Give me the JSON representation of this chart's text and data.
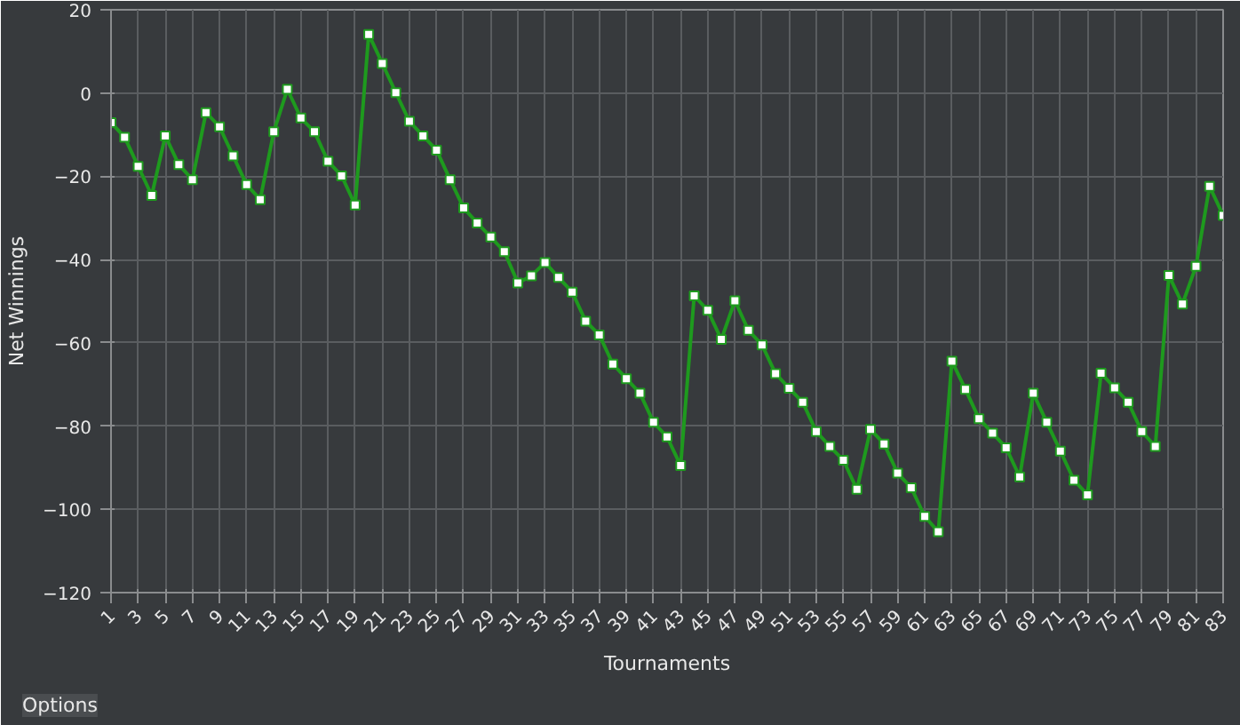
{
  "chart_data": {
    "type": "line",
    "xlabel": "Tournaments",
    "ylabel": "Net Winnings",
    "x": [
      1,
      2,
      3,
      4,
      5,
      6,
      7,
      8,
      9,
      10,
      11,
      12,
      13,
      14,
      15,
      16,
      17,
      18,
      19,
      20,
      21,
      22,
      23,
      24,
      25,
      26,
      27,
      28,
      29,
      30,
      31,
      32,
      33,
      34,
      35,
      36,
      37,
      38,
      39,
      40,
      41,
      42,
      43,
      44,
      45,
      46,
      47,
      48,
      49,
      50,
      51,
      52,
      53,
      54,
      55,
      56,
      57,
      58,
      59,
      60,
      61,
      62,
      63,
      64,
      65,
      66,
      67,
      68,
      69,
      70,
      71,
      72,
      73,
      74,
      75,
      76,
      77,
      78,
      79,
      80,
      81,
      82,
      83
    ],
    "series": [
      {
        "color": "#1e9a1e",
        "values": [
          -7.1,
          -10.6,
          -17.6,
          -24.6,
          -10.3,
          -17.2,
          -20.8,
          -4.7,
          -8.1,
          -15.1,
          -22,
          -25.6,
          -9.3,
          0.9,
          -6,
          -9.3,
          -16.4,
          -19.9,
          -26.9,
          14.1,
          7.1,
          0.1,
          -6.8,
          -10.3,
          -13.7,
          -20.8,
          -27.6,
          -31.2,
          -34.6,
          -38.1,
          -45.6,
          -43.9,
          -40.7,
          -44.3,
          -47.8,
          -54.8,
          -58.1,
          -65.1,
          -68.6,
          -72.1,
          -79.1,
          -82.6,
          -89.5,
          -48.7,
          -52.2,
          -59.2,
          -49.9,
          -57,
          -60.5,
          -67.4,
          -70.9,
          -74.3,
          -81.3,
          -84.9,
          -88.2,
          -95.2,
          -80.8,
          -84.3,
          -91.3,
          -94.8,
          -101.7,
          -105.4,
          -64.4,
          -71.2,
          -78.2,
          -81.7,
          -85.2,
          -92.2,
          -72.1,
          -79.1,
          -86,
          -93,
          -96.5,
          -67.3,
          -70.8,
          -74.3,
          -81.3,
          -84.9,
          -43.8,
          -50.7,
          -41.6,
          -22.4,
          -29.4
        ]
      }
    ],
    "xlim": [
      1,
      83
    ],
    "xticks": [
      1,
      3,
      5,
      7,
      9,
      11,
      13,
      15,
      17,
      19,
      21,
      23,
      25,
      27,
      29,
      31,
      33,
      35,
      37,
      39,
      41,
      43,
      45,
      47,
      49,
      51,
      53,
      55,
      57,
      59,
      61,
      63,
      65,
      67,
      69,
      71,
      73,
      75,
      77,
      79,
      81,
      83
    ],
    "ylim": [
      -120,
      20
    ],
    "yticks": [
      -120,
      -100,
      -80,
      -60,
      -40,
      -20,
      0,
      20
    ],
    "grid": true,
    "marker": "square",
    "line_style": "solid",
    "annotations": [
      "Options"
    ]
  }
}
